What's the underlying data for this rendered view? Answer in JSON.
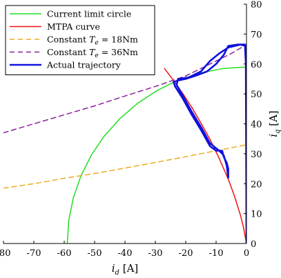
{
  "chart_data": {
    "type": "line",
    "xlabel_var": "i",
    "xlabel_sub": "d",
    "xlabel_unit": "[A]",
    "ylabel_var": "i",
    "ylabel_sub": "q",
    "ylabel_unit": "[A]",
    "xlim": [
      -80,
      0
    ],
    "ylim": [
      0,
      80
    ],
    "xticks": [
      -80,
      -70,
      -60,
      -50,
      -40,
      -30,
      -20,
      -10,
      0
    ],
    "yticks": [
      0,
      10,
      20,
      30,
      40,
      50,
      60,
      70,
      80
    ],
    "yaxis_side": "right",
    "legend_position": "top-left",
    "series": [
      {
        "name": "Current limit circle",
        "color": "#22dd22",
        "dash": "solid",
        "points": [
          [
            -59,
            0
          ],
          [
            -58.5,
            7.7
          ],
          [
            -57,
            15.3
          ],
          [
            -54.5,
            22.6
          ],
          [
            -51.1,
            29.5
          ],
          [
            -46.9,
            35.8
          ],
          [
            -41.7,
            41.7
          ],
          [
            -35.8,
            46.9
          ],
          [
            -29.5,
            51.1
          ],
          [
            -24,
            53.9
          ],
          [
            -22.6,
            54.5
          ],
          [
            -15.3,
            57
          ],
          [
            -7.7,
            58.5
          ],
          [
            0,
            59
          ]
        ]
      },
      {
        "name": "MTPA curve",
        "color": "#ee1111",
        "dash": "solid",
        "points": [
          [
            -27,
            58.5
          ],
          [
            -24,
            54.5
          ],
          [
            -21,
            50.2
          ],
          [
            -18,
            45.5
          ],
          [
            -15,
            40.3
          ],
          [
            -12,
            34.8
          ],
          [
            -9,
            28.5
          ],
          [
            -6,
            21.5
          ],
          [
            -4,
            16
          ],
          [
            -2,
            9.5
          ],
          [
            -1,
            5.5
          ],
          [
            0,
            0
          ]
        ]
      },
      {
        "name": "Constant T_e = 18Nm",
        "legend_prefix": "Constant ",
        "legend_var": "T",
        "legend_sub": "e",
        "legend_suffix": " = 18Nm",
        "color": "#eeaa22",
        "dash": "7,5",
        "points": [
          [
            -80,
            18.5
          ],
          [
            -70,
            20
          ],
          [
            -60,
            21.8
          ],
          [
            -50,
            23.4
          ],
          [
            -40,
            25.2
          ],
          [
            -30,
            27.1
          ],
          [
            -20,
            29
          ],
          [
            -10,
            31
          ],
          [
            0,
            33
          ]
        ]
      },
      {
        "name": "Constant T_e = 36Nm",
        "legend_prefix": "Constant ",
        "legend_var": "T",
        "legend_sub": "e",
        "legend_suffix": " = 36Nm",
        "color": "#882299",
        "dash": "7,5",
        "points": [
          [
            -80,
            37
          ],
          [
            -70,
            40
          ],
          [
            -60,
            43
          ],
          [
            -50,
            46
          ],
          [
            -40,
            49.3
          ],
          [
            -30,
            52.5
          ],
          [
            -20,
            56
          ],
          [
            -10,
            61
          ],
          [
            -5,
            63.5
          ],
          [
            0,
            66.5
          ]
        ]
      },
      {
        "name": "Actual trajectory",
        "color": "#1111dd",
        "dash": "solid",
        "width": 2.6,
        "points": [
          [
            0,
            0
          ],
          [
            -0.2,
            60
          ],
          [
            -0.5,
            66.5
          ],
          [
            -3,
            66.5
          ],
          [
            -6,
            66
          ],
          [
            -7.5,
            63
          ],
          [
            -10,
            60
          ],
          [
            -13,
            57.5
          ],
          [
            -17,
            56
          ],
          [
            -20,
            55
          ],
          [
            -22.5,
            54.5
          ],
          [
            -24,
            54
          ],
          [
            -23.5,
            52.5
          ],
          [
            -21,
            48.5
          ],
          [
            -18,
            43
          ],
          [
            -15,
            38
          ],
          [
            -12,
            32.5
          ],
          [
            -10,
            31
          ],
          [
            -8,
            31
          ],
          [
            -7.5,
            29
          ],
          [
            -6.5,
            27
          ],
          [
            -6,
            25
          ],
          [
            -6,
            22
          ],
          [
            -6.5,
            26
          ],
          [
            -7.5,
            29.5
          ],
          [
            -9,
            31
          ],
          [
            -12,
            33.5
          ],
          [
            -15,
            39
          ],
          [
            -18,
            44
          ],
          [
            -21,
            49.5
          ],
          [
            -23,
            53
          ],
          [
            -22.5,
            55
          ],
          [
            -19,
            55.5
          ],
          [
            -15,
            57.5
          ],
          [
            -12,
            61
          ],
          [
            -9,
            63.5
          ],
          [
            -6,
            65.5
          ],
          [
            -2,
            66.5
          ],
          [
            -0.2,
            66
          ],
          [
            0,
            55
          ],
          [
            0,
            30
          ],
          [
            0,
            0
          ]
        ]
      }
    ]
  }
}
